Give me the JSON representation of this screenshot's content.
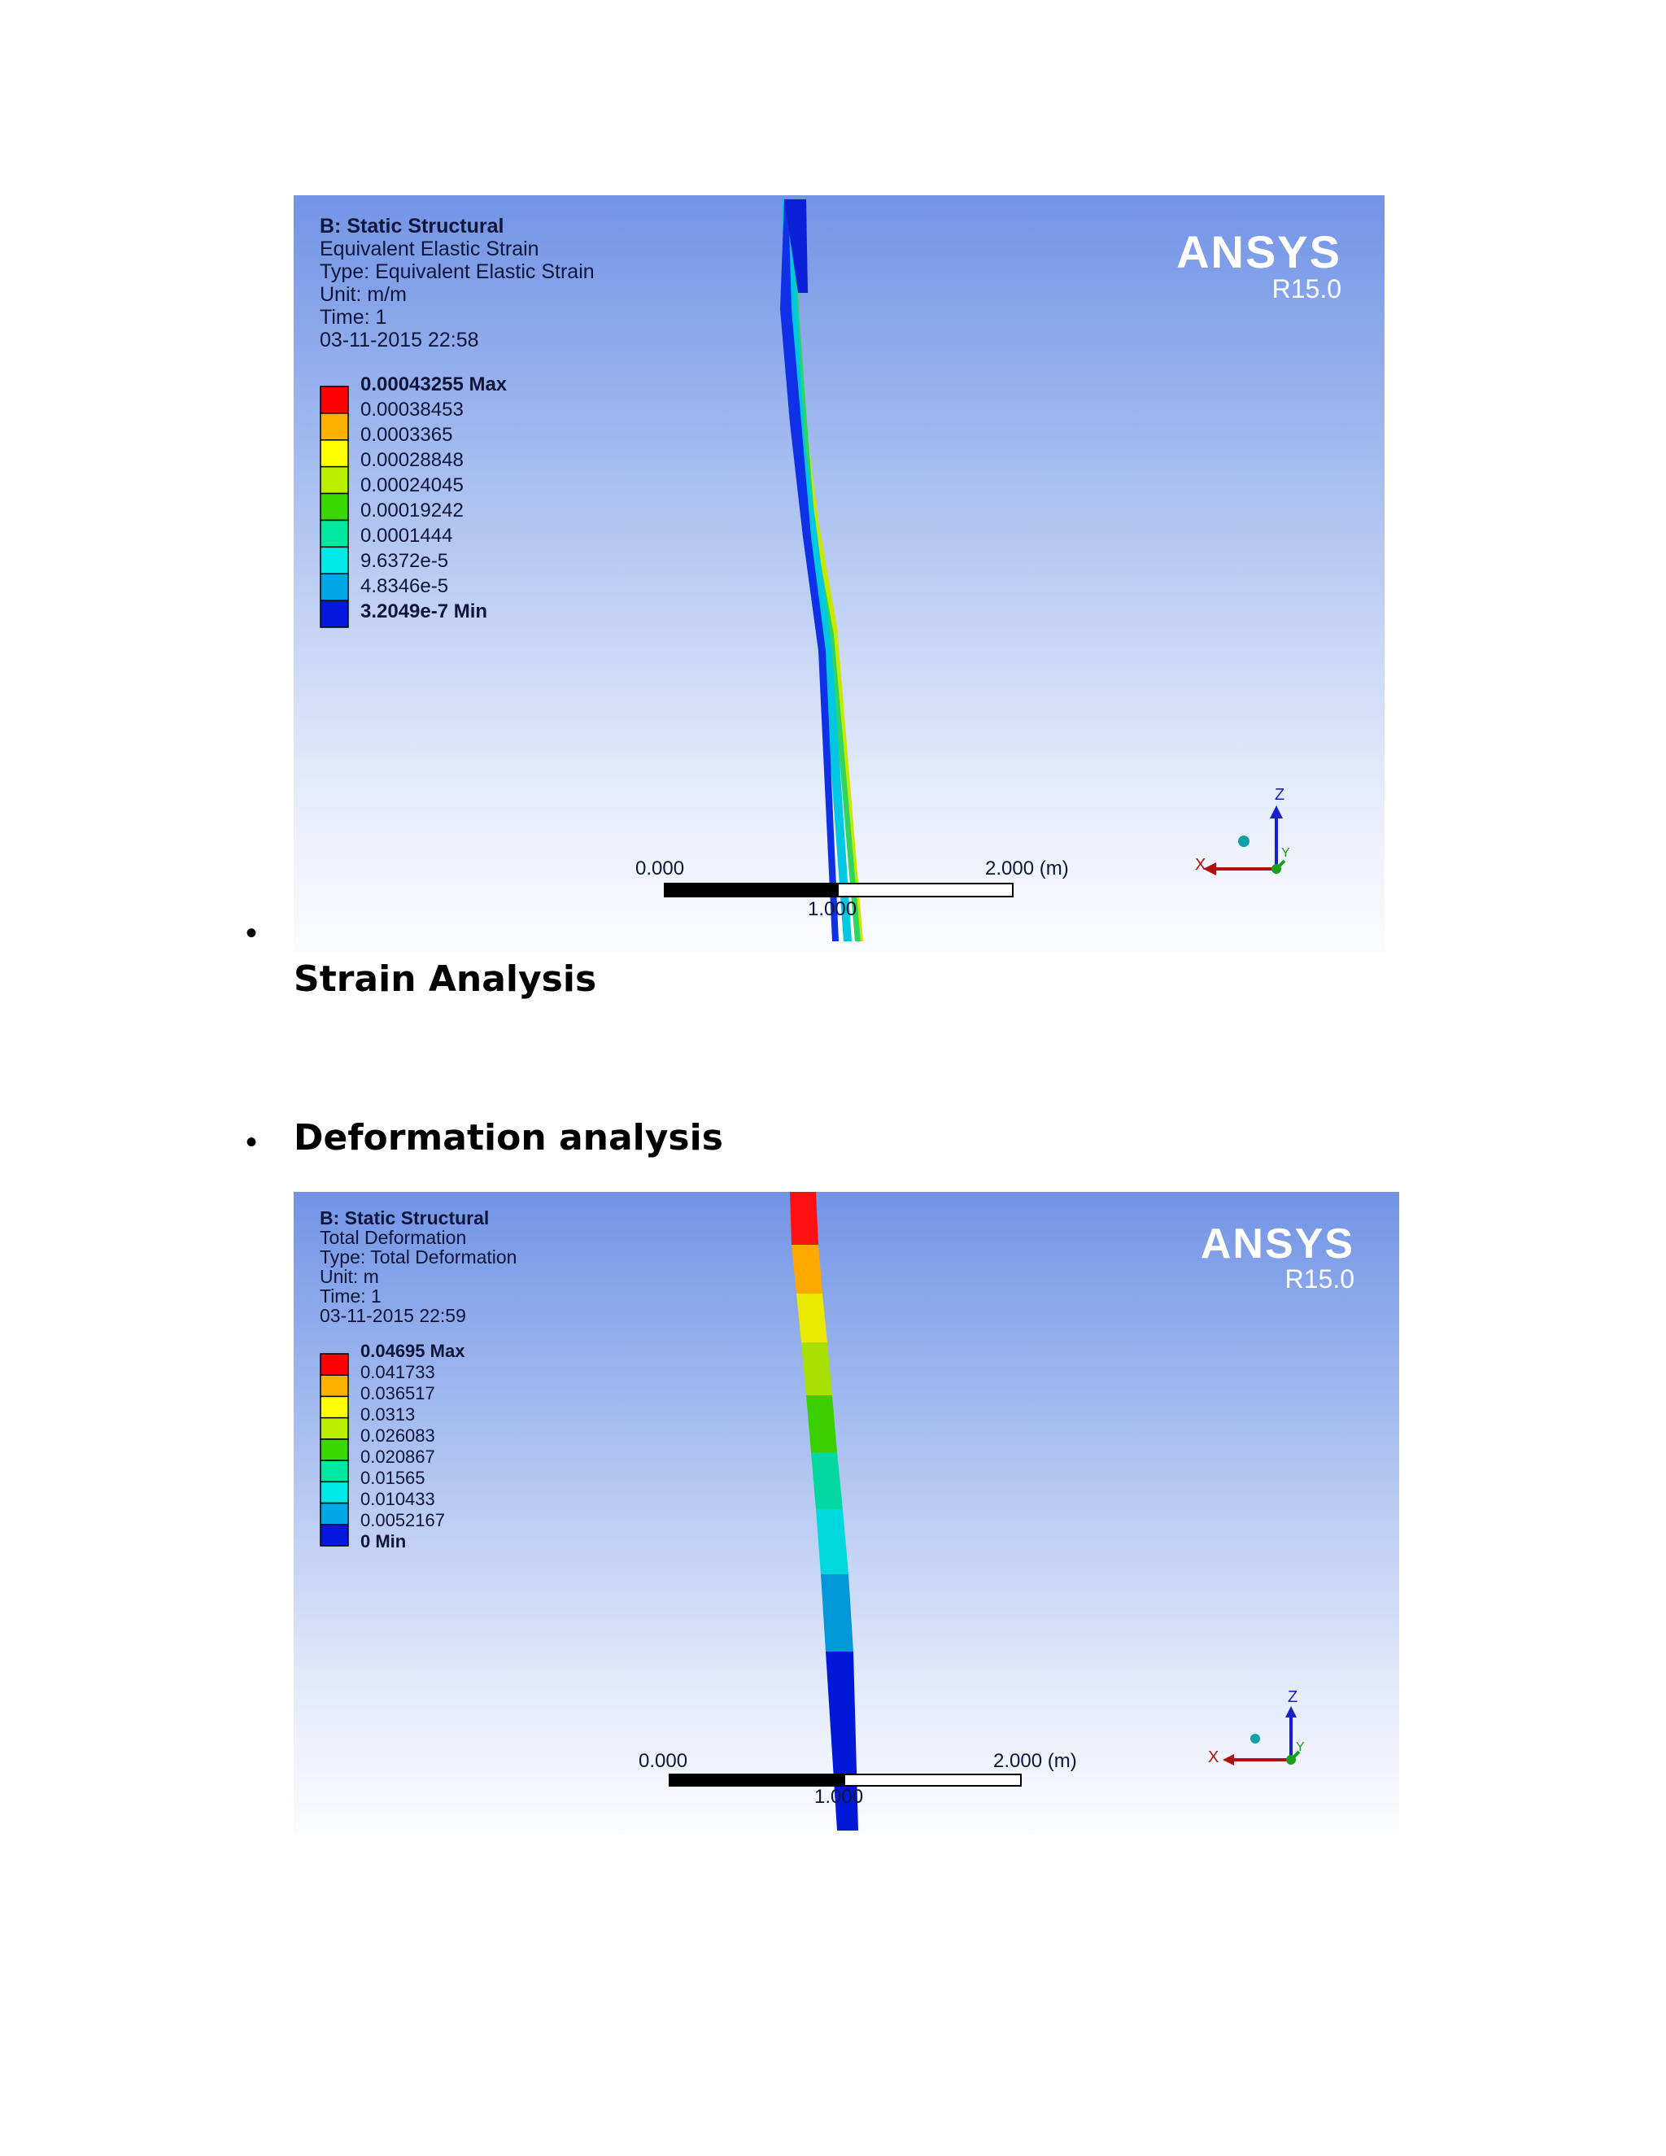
{
  "strain_plot": {
    "title": "B: Static Structural",
    "lines": [
      "Equivalent Elastic Strain",
      "Type: Equivalent Elastic Strain",
      "Unit: m/m",
      "Time: 1",
      "03-11-2015 22:58"
    ],
    "legend": [
      "0.00043255 Max",
      "0.00038453",
      "0.0003365",
      "0.00028848",
      "0.00024045",
      "0.00019242",
      "0.0001444",
      "9.6372e-5",
      "4.8346e-5",
      "3.2049e-7 Min"
    ],
    "brand": "ANSYS",
    "version": "R15.0",
    "scale": {
      "left": "0.000",
      "mid": "1.000",
      "right": "2.000 (m)"
    },
    "axes": {
      "z": "Z",
      "x": "X",
      "y": "Y"
    }
  },
  "strain_heading": "Strain Analysis",
  "deformation_heading": "Deformation analysis",
  "deformation_plot": {
    "title": "B: Static Structural",
    "lines": [
      "Total Deformation",
      "Type: Total Deformation",
      "Unit: m",
      "Time: 1",
      "03-11-2015 22:59"
    ],
    "legend": [
      "0.04695 Max",
      "0.041733",
      "0.036517",
      "0.0313",
      "0.026083",
      "0.020867",
      "0.01565",
      "0.010433",
      "0.0052167",
      "0 Min"
    ],
    "brand": "ANSYS",
    "version": "R15.0",
    "scale": {
      "left": "0.000",
      "mid": "1.000",
      "right": "2.000 (m)"
    },
    "axes": {
      "z": "Z",
      "x": "X",
      "y": "Y"
    }
  },
  "bullet": "•",
  "colors": {
    "scale": [
      "#ff0000",
      "#ffb000",
      "#ffff00",
      "#b8f000",
      "#3ad800",
      "#00e8a0",
      "#00e8e8",
      "#00a8e8",
      "#0018e0"
    ],
    "text": "#10163a"
  }
}
